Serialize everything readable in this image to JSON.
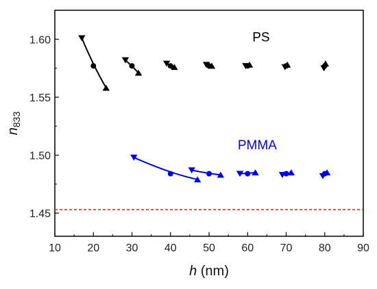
{
  "chart_data": {
    "type": "scatter",
    "xlabel_italic": "h",
    "xlabel_rest": " (nm)",
    "ylabel_main": "n",
    "ylabel_sub": "833",
    "xlim": [
      10,
      90
    ],
    "ylim": [
      1.43,
      1.625
    ],
    "x_ticks": [
      "10",
      "20",
      "30",
      "40",
      "50",
      "60",
      "70",
      "80",
      "90"
    ],
    "y_ticks": [
      "1.45",
      "1.50",
      "1.55",
      "1.60"
    ],
    "grid": false,
    "reference_line": {
      "y": 1.453,
      "color": "#e41a1c",
      "style": "dashed"
    },
    "series": [
      {
        "name": "PS",
        "color": "#000000",
        "groups": [
          {
            "down": [
              17,
              1.601
            ],
            "circle": [
              20,
              1.577
            ],
            "up": [
              23.3,
              1.558
            ]
          },
          {
            "down": [
              28.3,
              1.582
            ],
            "circle": [
              30,
              1.577
            ],
            "up": [
              31.7,
              1.571
            ]
          },
          {
            "down": [
              39,
              1.579
            ],
            "circle": [
              40,
              1.577
            ],
            "up": [
              41,
              1.576
            ]
          },
          {
            "down": [
              49.3,
              1.578
            ],
            "circle": [
              50,
              1.577
            ],
            "up": [
              50.7,
              1.577
            ]
          },
          {
            "down": [
              59.5,
              1.577
            ],
            "circle": [
              60,
              1.577
            ],
            "up": [
              60.5,
              1.578
            ]
          },
          {
            "down": [
              69.7,
              1.576
            ],
            "circle": [
              70,
              1.577
            ],
            "up": [
              70.3,
              1.578
            ]
          },
          {
            "down": [
              79.8,
              1.575
            ],
            "circle": [
              80,
              1.577
            ],
            "up": [
              80.2,
              1.579
            ]
          }
        ]
      },
      {
        "name": "PMMA",
        "color": "#0000e6",
        "groups": [
          {
            "down": [
              30.5,
              1.498
            ],
            "circle": [
              40,
              1.484
            ],
            "up": [
              47,
              1.479
            ]
          },
          {
            "down": [
              45.5,
              1.487
            ],
            "circle": [
              50,
              1.484
            ],
            "up": [
              53,
              1.483
            ]
          },
          {
            "down": [
              58,
              1.484
            ],
            "circle": [
              60,
              1.484
            ],
            "up": [
              62,
              1.485
            ]
          },
          {
            "down": [
              69,
              1.483
            ],
            "circle": [
              70,
              1.484
            ],
            "up": [
              71.3,
              1.485
            ]
          },
          {
            "down": [
              79.5,
              1.482
            ],
            "circle": [
              80,
              1.484
            ],
            "up": [
              80.6,
              1.485
            ]
          }
        ]
      }
    ]
  }
}
